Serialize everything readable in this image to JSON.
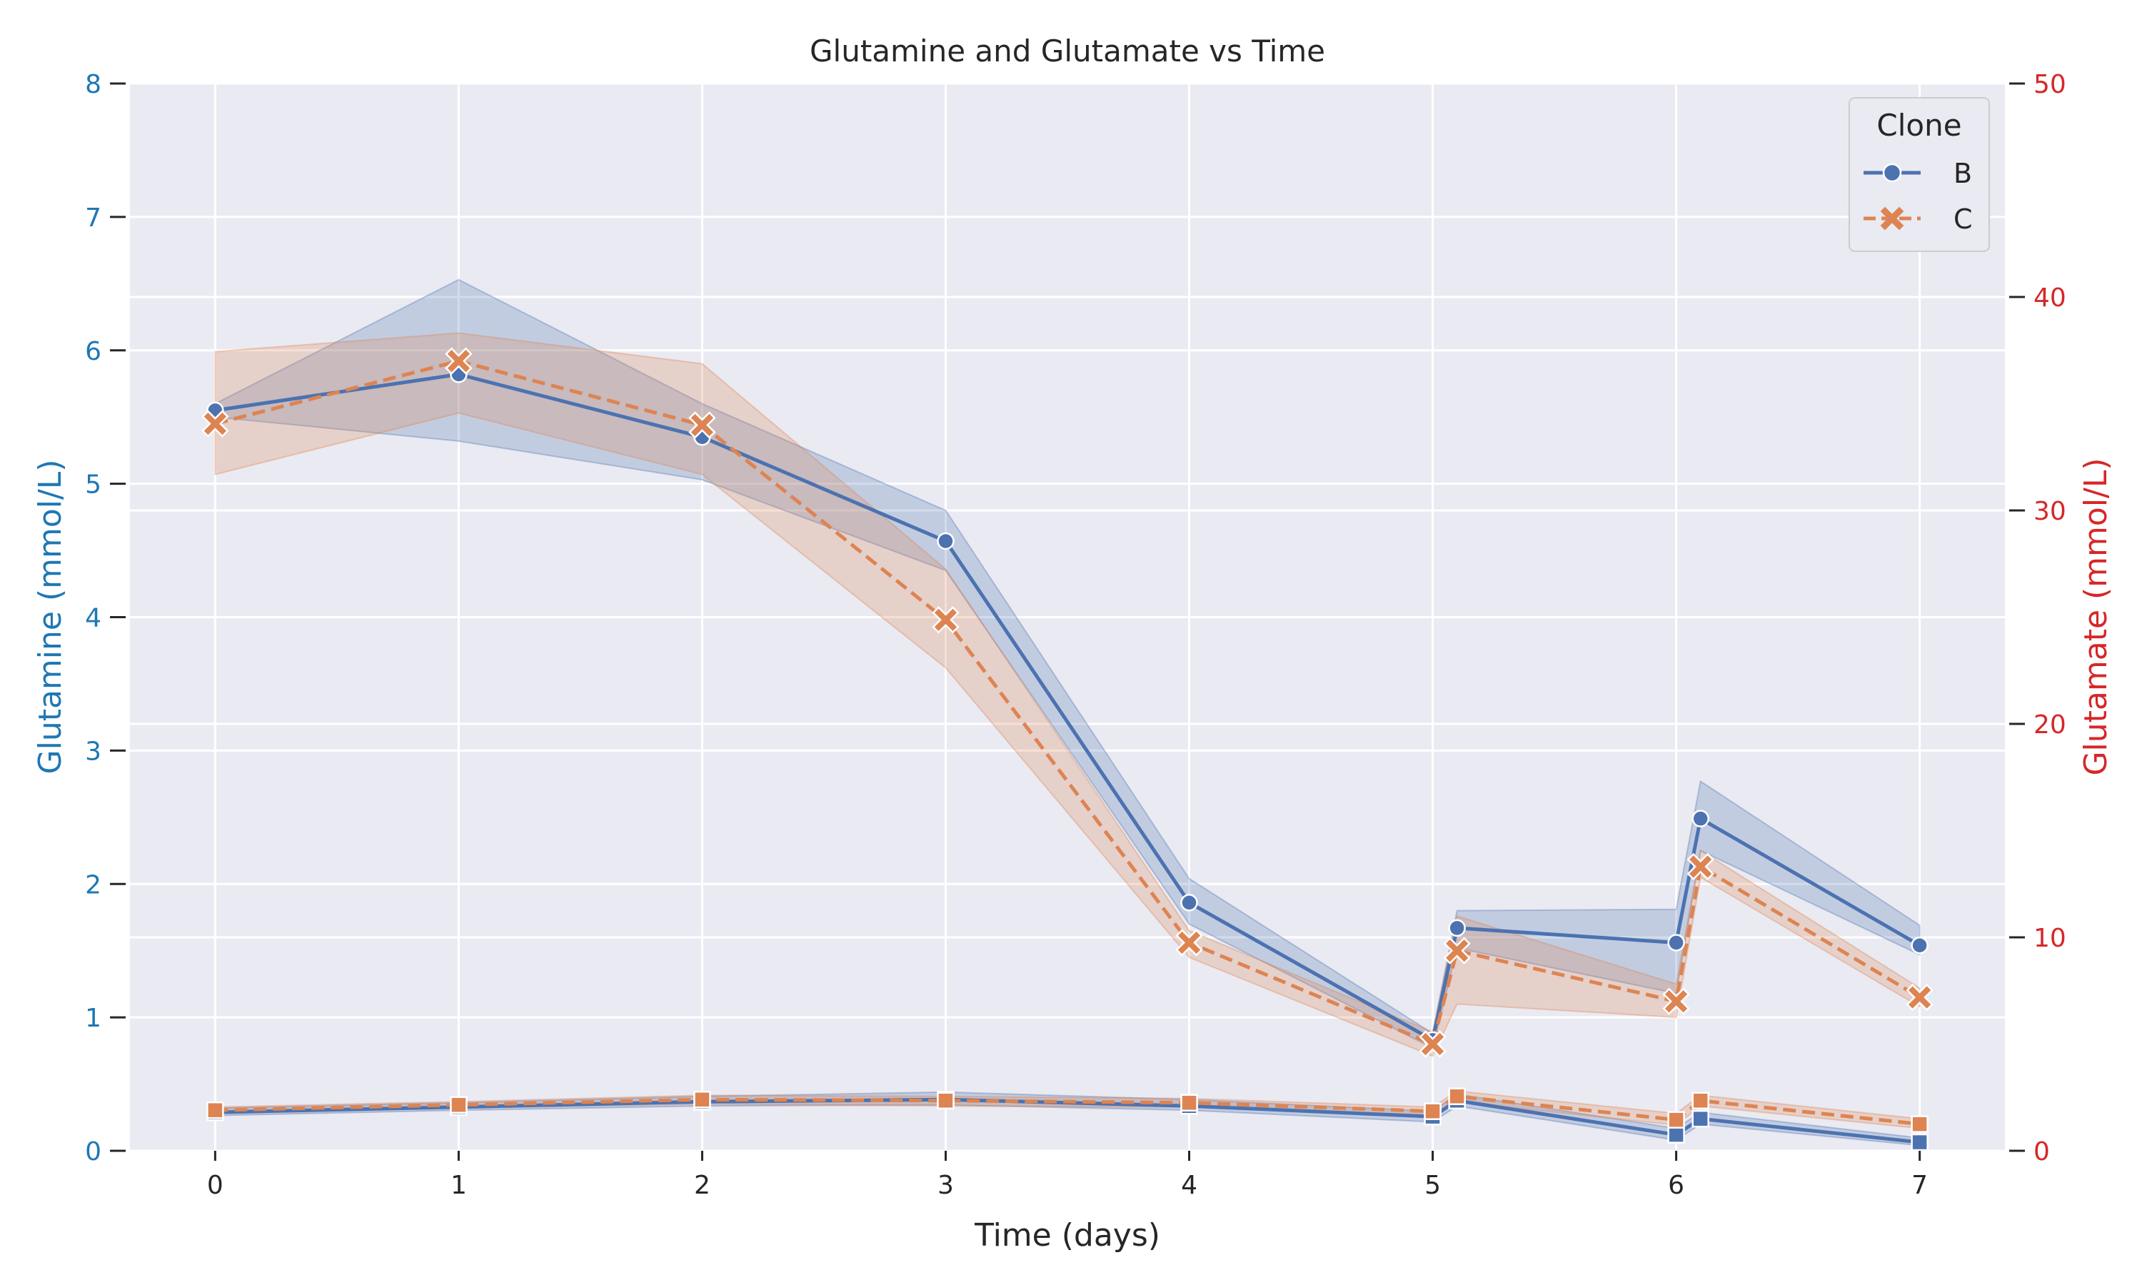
{
  "chart_data": {
    "type": "line",
    "title": "Glutamine and Glutamate vs Time",
    "xlabel": "Time (days)",
    "ylabel_left": "Glutamine (mmol/L)",
    "ylabel_right": "Glutamate (mmol/L)",
    "xlim": [
      -0.35,
      7.35
    ],
    "ylim_left": [
      0,
      8
    ],
    "ylim_right": [
      0,
      50
    ],
    "x_ticks": [
      0,
      1,
      2,
      3,
      4,
      5,
      6,
      7
    ],
    "y_ticks_left": [
      0,
      1,
      2,
      3,
      4,
      5,
      6,
      7,
      8
    ],
    "y_ticks_right": [
      0,
      10,
      20,
      30,
      40,
      50
    ],
    "grid": true,
    "legend": {
      "title": "Clone",
      "placement": "top-right",
      "entries": [
        "B",
        "C"
      ]
    },
    "colors": {
      "B": "#4c72b0",
      "C": "#dd8452",
      "left_axis": "#1f77b4",
      "right_axis": "#d62728",
      "background": "#eaeaf2",
      "grid": "#ffffff"
    },
    "series": [
      {
        "name": "B",
        "axis": "left",
        "metric": "Glutamine",
        "style": "solid",
        "marker": "circle",
        "x": [
          0,
          1,
          2,
          3,
          4,
          5,
          5.1,
          6,
          6.1,
          7
        ],
        "y": [
          5.55,
          5.82,
          5.35,
          4.57,
          1.86,
          0.83,
          1.67,
          1.56,
          2.49,
          1.54
        ],
        "lower": [
          5.5,
          5.32,
          5.03,
          4.35,
          1.7,
          0.77,
          1.52,
          1.18,
          2.25,
          1.47
        ],
        "upper": [
          5.6,
          6.53,
          5.6,
          4.8,
          2.04,
          0.88,
          1.8,
          1.81,
          2.77,
          1.69
        ]
      },
      {
        "name": "C",
        "axis": "left",
        "metric": "Glutamine",
        "style": "dashed",
        "marker": "x",
        "x": [
          0,
          1,
          2,
          3,
          4,
          5,
          5.1,
          6,
          6.1,
          7
        ],
        "y": [
          5.45,
          5.92,
          5.44,
          3.98,
          1.56,
          0.8,
          1.5,
          1.12,
          2.13,
          1.15
        ],
        "lower": [
          5.07,
          5.53,
          5.07,
          3.62,
          1.45,
          0.71,
          1.1,
          1.0,
          2.05,
          1.08
        ],
        "upper": [
          5.99,
          6.13,
          5.9,
          4.36,
          1.65,
          0.89,
          1.76,
          1.25,
          2.25,
          1.22
        ]
      },
      {
        "name": "B",
        "axis": "right",
        "metric": "Glutamate",
        "style": "solid",
        "marker": "square",
        "x": [
          0,
          1,
          2,
          3,
          4,
          5,
          5.1,
          6,
          6.1,
          7
        ],
        "y": [
          1.8,
          2.05,
          2.3,
          2.4,
          2.1,
          1.6,
          2.35,
          0.75,
          1.5,
          0.4
        ],
        "lower": [
          1.65,
          1.9,
          2.1,
          2.15,
          1.9,
          1.35,
          2.1,
          0.5,
          1.25,
          0.25
        ],
        "upper": [
          2.0,
          2.25,
          2.55,
          2.75,
          2.4,
          1.85,
          2.65,
          1.05,
          1.8,
          0.6
        ]
      },
      {
        "name": "C",
        "axis": "right",
        "metric": "Glutamate",
        "style": "dashed",
        "marker": "square",
        "x": [
          0,
          1,
          2,
          3,
          4,
          5,
          5.1,
          6,
          6.1,
          7
        ],
        "y": [
          1.9,
          2.15,
          2.4,
          2.35,
          2.25,
          1.85,
          2.55,
          1.45,
          2.35,
          1.25
        ],
        "lower": [
          1.75,
          2.0,
          2.2,
          2.1,
          2.05,
          1.65,
          2.3,
          1.2,
          2.1,
          1.05
        ],
        "upper": [
          2.05,
          2.3,
          2.6,
          2.55,
          2.45,
          2.05,
          2.8,
          1.75,
          2.6,
          1.5
        ]
      }
    ]
  }
}
